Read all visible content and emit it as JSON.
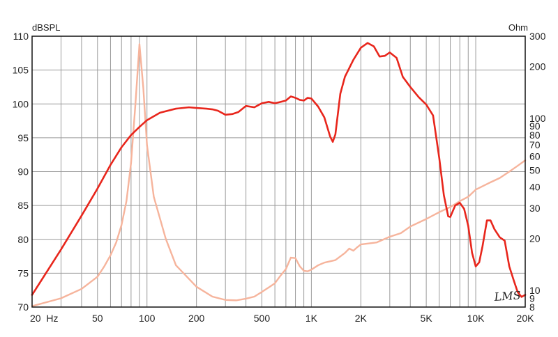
{
  "chart_data": {
    "type": "line",
    "x_scale": "log",
    "xlim": [
      20,
      20000
    ],
    "ylim_left": [
      70,
      110
    ],
    "ylim_right_log": [
      8,
      300
    ],
    "left_unit": "dBSPL",
    "right_unit": "Ohm",
    "x_ticks": [
      {
        "value": 20,
        "label": "20  Hz"
      },
      {
        "value": 50,
        "label": "50"
      },
      {
        "value": 100,
        "label": "100"
      },
      {
        "value": 200,
        "label": "200"
      },
      {
        "value": 500,
        "label": "500"
      },
      {
        "value": 1000,
        "label": "1K"
      },
      {
        "value": 2000,
        "label": "2K"
      },
      {
        "value": 5000,
        "label": "5K"
      },
      {
        "value": 10000,
        "label": "10K"
      },
      {
        "value": 20000,
        "label": "20K"
      }
    ],
    "y_ticks_left": [
      70,
      75,
      80,
      85,
      90,
      95,
      100,
      105,
      110
    ],
    "y_ticks_right": [
      300,
      200,
      100,
      90,
      80,
      70,
      60,
      50,
      40,
      30,
      20,
      10,
      9,
      8
    ],
    "grid": true,
    "series": [
      {
        "color": "#e8261c",
        "axis": "left",
        "points": [
          [
            20,
            71.8
          ],
          [
            30,
            78.5
          ],
          [
            40,
            83.5
          ],
          [
            50,
            87.5
          ],
          [
            60,
            91
          ],
          [
            70,
            93.6
          ],
          [
            80,
            95.4
          ],
          [
            90,
            96.6
          ],
          [
            100,
            97.6
          ],
          [
            120,
            98.7
          ],
          [
            150,
            99.3
          ],
          [
            180,
            99.5
          ],
          [
            200,
            99.4
          ],
          [
            230,
            99.3
          ],
          [
            250,
            99.2
          ],
          [
            270,
            99.0
          ],
          [
            300,
            98.4
          ],
          [
            330,
            98.5
          ],
          [
            360,
            98.8
          ],
          [
            400,
            99.7
          ],
          [
            450,
            99.5
          ],
          [
            500,
            100.1
          ],
          [
            550,
            100.3
          ],
          [
            600,
            100.1
          ],
          [
            650,
            100.3
          ],
          [
            700,
            100.5
          ],
          [
            750,
            101.1
          ],
          [
            800,
            100.9
          ],
          [
            850,
            100.6
          ],
          [
            900,
            100.5
          ],
          [
            950,
            100.9
          ],
          [
            1000,
            100.8
          ],
          [
            1100,
            99.6
          ],
          [
            1200,
            98.0
          ],
          [
            1300,
            95.2
          ],
          [
            1350,
            94.4
          ],
          [
            1400,
            95.5
          ],
          [
            1500,
            101.5
          ],
          [
            1600,
            104.0
          ],
          [
            1800,
            106.5
          ],
          [
            2000,
            108.3
          ],
          [
            2200,
            109.0
          ],
          [
            2400,
            108.5
          ],
          [
            2600,
            107.0
          ],
          [
            2800,
            107.1
          ],
          [
            3000,
            107.6
          ],
          [
            3300,
            106.8
          ],
          [
            3600,
            104.0
          ],
          [
            4000,
            102.5
          ],
          [
            4500,
            101.0
          ],
          [
            5000,
            99.9
          ],
          [
            5500,
            98.3
          ],
          [
            6000,
            92.0
          ],
          [
            6400,
            86.5
          ],
          [
            6800,
            83.4
          ],
          [
            7000,
            83.3
          ],
          [
            7500,
            85.0
          ],
          [
            8000,
            85.4
          ],
          [
            8500,
            84.5
          ],
          [
            9000,
            82.0
          ],
          [
            9500,
            78.0
          ],
          [
            10000,
            76.0
          ],
          [
            10500,
            76.6
          ],
          [
            11000,
            79.0
          ],
          [
            11700,
            82.8
          ],
          [
            12300,
            82.8
          ],
          [
            13000,
            81.5
          ],
          [
            14000,
            80.3
          ],
          [
            15000,
            79.8
          ],
          [
            16000,
            76.0
          ],
          [
            17000,
            74.0
          ],
          [
            18000,
            72.2
          ],
          [
            19000,
            71.5
          ],
          [
            20000,
            71.8
          ]
        ]
      },
      {
        "color": "#f6b49c",
        "axis": "right",
        "points": [
          [
            20,
            8.1
          ],
          [
            30,
            9.0
          ],
          [
            40,
            10.2
          ],
          [
            50,
            12.0
          ],
          [
            55,
            13.8
          ],
          [
            60,
            16.0
          ],
          [
            65,
            19.0
          ],
          [
            70,
            24.0
          ],
          [
            75,
            33.0
          ],
          [
            80,
            55.0
          ],
          [
            85,
            120.0
          ],
          [
            90,
            270.0
          ],
          [
            95,
            150.0
          ],
          [
            100,
            70.0
          ],
          [
            110,
            35.0
          ],
          [
            130,
            20.0
          ],
          [
            150,
            14.0
          ],
          [
            200,
            10.5
          ],
          [
            250,
            9.2
          ],
          [
            300,
            8.8
          ],
          [
            350,
            8.75
          ],
          [
            400,
            8.95
          ],
          [
            450,
            9.2
          ],
          [
            500,
            9.8
          ],
          [
            550,
            10.4
          ],
          [
            600,
            11.0
          ],
          [
            650,
            12.2
          ],
          [
            700,
            13.3
          ],
          [
            750,
            15.5
          ],
          [
            800,
            15.4
          ],
          [
            850,
            13.8
          ],
          [
            900,
            13.0
          ],
          [
            950,
            12.9
          ],
          [
            1000,
            13.2
          ],
          [
            1100,
            14.0
          ],
          [
            1200,
            14.5
          ],
          [
            1400,
            15.0
          ],
          [
            1600,
            16.5
          ],
          [
            1700,
            17.5
          ],
          [
            1800,
            17.0
          ],
          [
            1900,
            17.8
          ],
          [
            2000,
            18.5
          ],
          [
            2500,
            19.0
          ],
          [
            3000,
            20.5
          ],
          [
            3500,
            21.5
          ],
          [
            4000,
            23.5
          ],
          [
            5000,
            26.0
          ],
          [
            6000,
            28.5
          ],
          [
            7000,
            30.5
          ],
          [
            8000,
            33.0
          ],
          [
            9000,
            35.0
          ],
          [
            10000,
            38.5
          ],
          [
            12000,
            42.0
          ],
          [
            14000,
            45.0
          ],
          [
            16000,
            49.0
          ],
          [
            18000,
            53.0
          ],
          [
            20000,
            57.0
          ]
        ]
      }
    ],
    "annotations": [
      {
        "text": "LMS",
        "style": "logo"
      }
    ]
  }
}
